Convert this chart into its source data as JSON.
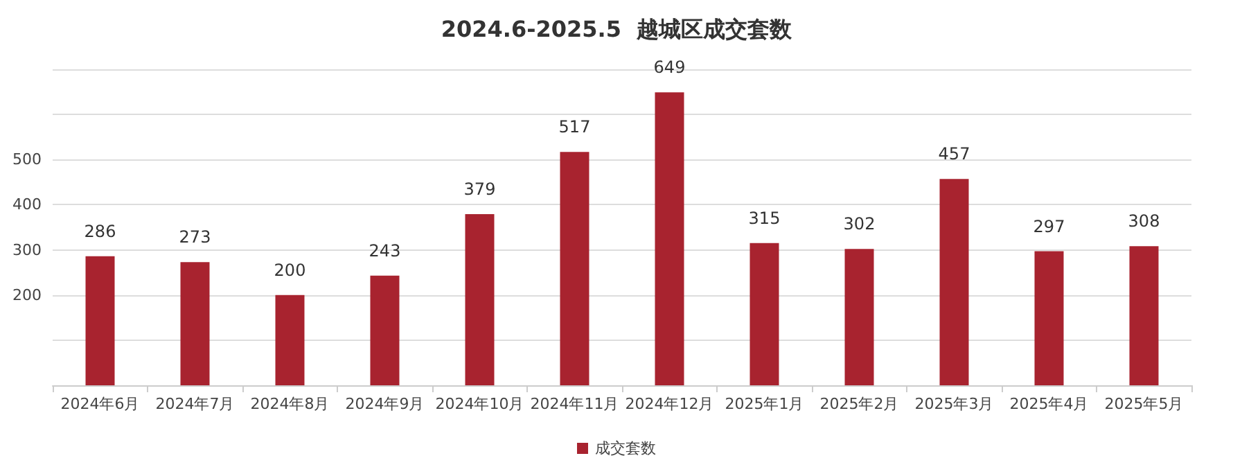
{
  "chart_data": {
    "type": "bar",
    "title": "2024.6-2025.5  越城区成交套数",
    "categories": [
      "2024年6月",
      "2024年7月",
      "2024年8月",
      "2024年9月",
      "2024年10月",
      "2024年11月",
      "2024年12月",
      "2025年1月",
      "2025年2月",
      "2025年3月",
      "2025年4月",
      "2025年5月"
    ],
    "series": [
      {
        "name": "成交套数",
        "color": "#a8232f",
        "values": [
          286,
          273,
          200,
          243,
          379,
          517,
          649,
          315,
          302,
          457,
          297,
          308
        ]
      }
    ],
    "ylim": [
      0,
      700
    ],
    "yticks": [
      {
        "value": 0,
        "label": null
      },
      {
        "value": 100,
        "label": null
      },
      200,
      300,
      400,
      500,
      {
        "value": 600,
        "label": null
      },
      {
        "value": 700,
        "label": null
      }
    ],
    "grid": "y",
    "legend": "bottom",
    "data_labels": true
  }
}
